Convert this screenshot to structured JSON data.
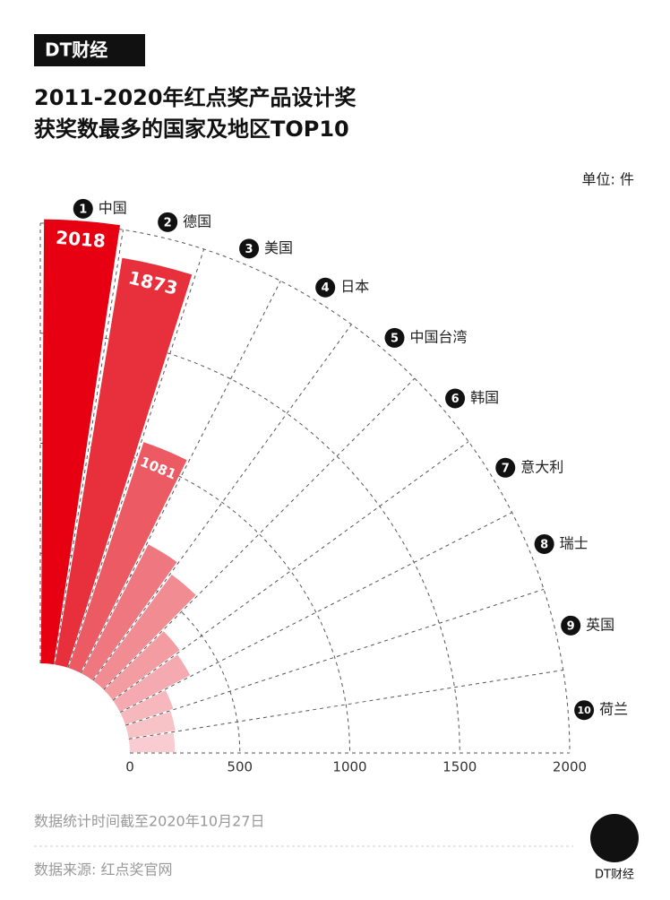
{
  "brand": "DT财经",
  "chart_data": {
    "type": "radial-bar",
    "title": [
      "2011-2020年红点奖产品设计奖",
      "获奖数最多的国家及地区TOP10"
    ],
    "unit": "单位: 件",
    "ranks": [
      1,
      2,
      3,
      4,
      5,
      6,
      7,
      8,
      9,
      10
    ],
    "categories": [
      "中国",
      "德国",
      "美国",
      "日本",
      "中国台湾",
      "韩国",
      "意大利",
      "瑞士",
      "英国",
      "荷兰"
    ],
    "values": [
      2018,
      1873,
      1081,
      660,
      600,
      380,
      360,
      230,
      215,
      205
    ],
    "value_labels": [
      "2018",
      "1873",
      "1081",
      null,
      null,
      null,
      null,
      null,
      null,
      null
    ],
    "colors": [
      "#e60012",
      "#e8303c",
      "#ec5a63",
      "#ef7880",
      "#f18c93",
      "#f39ca2",
      "#f4aab0",
      "#f6b8bd",
      "#f7c3c7",
      "#f8ccd0"
    ],
    "xlim": [
      0,
      2000
    ],
    "xticks": [
      0,
      500,
      1000,
      1500,
      2000
    ],
    "grid": true,
    "notes": [
      "数据统计时间截至2020年10月27日",
      "数据来源: 红点奖官网"
    ]
  }
}
